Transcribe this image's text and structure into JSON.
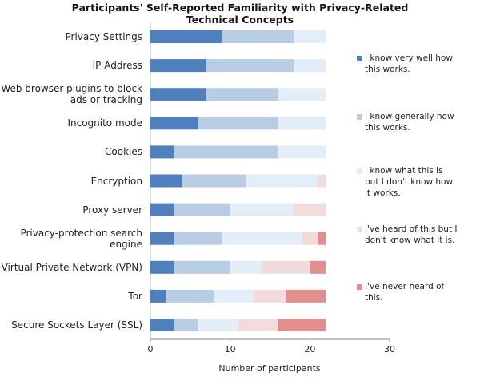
{
  "chart_data": {
    "type": "stacked_barh",
    "title": "Participants' Self-Reported Familiarity with Privacy-Related Technical Concepts",
    "x_label": "Number of participants",
    "categories": [
      "Privacy Settings",
      "IP Address",
      "Web browser plugins to block ads or tracking",
      "Incognito mode",
      "Cookies",
      "Encryption",
      "Proxy server",
      "Privacy-protection search engine",
      "Virtual Private Network (VPN)",
      "Tor",
      "Secure Sockets Layer (SSL)"
    ],
    "series": [
      {
        "name": "I know very well how this works.",
        "color": "#4f7fbd",
        "values": [
          9,
          7,
          7,
          6,
          3,
          4,
          3,
          3,
          3,
          2,
          3
        ]
      },
      {
        "name": "I know generally how this works.",
        "color": "#b8cce4",
        "values": [
          9,
          11,
          9,
          10,
          13,
          8,
          7,
          6,
          7,
          6,
          3
        ]
      },
      {
        "name": "I know what this is but I don't know how it works.",
        "color": "#e3edf8",
        "values": [
          4,
          4,
          6,
          6,
          6,
          9,
          8,
          10,
          4,
          5,
          5
        ]
      },
      {
        "name": "I've heard of this but I don't know what it is.",
        "color": "#f2dcdb",
        "values": [
          0,
          0,
          0,
          0,
          0,
          1,
          4,
          2,
          6,
          4,
          5
        ]
      },
      {
        "name": "I've never  heard of this.",
        "color": "#e38f8f",
        "values": [
          0,
          0,
          0,
          0,
          0,
          0,
          0,
          1,
          2,
          5,
          6
        ]
      }
    ],
    "xlim": [
      0,
      30
    ],
    "xticks": [
      0,
      10,
      20,
      30
    ],
    "grid": false,
    "legend": "right"
  }
}
